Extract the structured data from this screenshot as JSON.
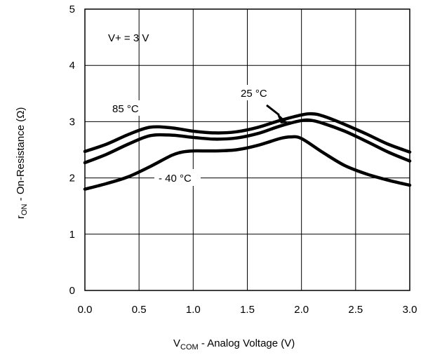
{
  "chart_data": {
    "type": "line",
    "xlabel": {
      "main": "V",
      "sub": "COM",
      "rest": " -  Analog Voltage (V)"
    },
    "ylabel": {
      "main": "r",
      "sub": "ON",
      "rest": " -    On-Resistance (Ω)"
    },
    "xlim": [
      0,
      3
    ],
    "ylim": [
      0,
      5
    ],
    "x_ticks": [
      0.0,
      0.5,
      1.0,
      1.5,
      2.0,
      2.5,
      3.0
    ],
    "x_tick_labels": [
      "0.0",
      "0.5",
      "1.0",
      "1.5",
      "2.0",
      "2.5",
      "3.0"
    ],
    "y_ticks": [
      0,
      1,
      2,
      3,
      4,
      5
    ],
    "y_tick_labels": [
      "0",
      "1",
      "2",
      "3",
      "4",
      "5"
    ],
    "grid": true,
    "series": [
      {
        "name": "85 °C",
        "x": [
          0.0,
          0.2,
          0.4,
          0.6,
          0.8,
          1.0,
          1.2,
          1.4,
          1.6,
          1.8,
          2.0,
          2.1,
          2.2,
          2.4,
          2.6,
          2.8,
          3.0
        ],
        "values": [
          2.47,
          2.6,
          2.77,
          2.9,
          2.89,
          2.83,
          2.8,
          2.82,
          2.9,
          3.02,
          3.12,
          3.14,
          3.1,
          2.95,
          2.78,
          2.6,
          2.46
        ]
      },
      {
        "name": "25 °C",
        "x": [
          0.0,
          0.2,
          0.4,
          0.6,
          0.8,
          1.0,
          1.2,
          1.4,
          1.6,
          1.8,
          2.0,
          2.1,
          2.2,
          2.4,
          2.6,
          2.8,
          3.0
        ],
        "values": [
          2.27,
          2.42,
          2.6,
          2.75,
          2.76,
          2.72,
          2.69,
          2.71,
          2.79,
          2.92,
          3.02,
          3.02,
          2.97,
          2.83,
          2.65,
          2.46,
          2.3
        ]
      },
      {
        "name": "- 40 °C",
        "x": [
          0.0,
          0.2,
          0.4,
          0.6,
          0.8,
          0.9,
          1.0,
          1.2,
          1.4,
          1.6,
          1.8,
          1.9,
          2.0,
          2.2,
          2.4,
          2.6,
          2.8,
          3.0
        ],
        "values": [
          1.8,
          1.9,
          2.02,
          2.2,
          2.4,
          2.46,
          2.48,
          2.48,
          2.5,
          2.58,
          2.7,
          2.73,
          2.7,
          2.45,
          2.22,
          2.07,
          1.96,
          1.87
        ]
      }
    ],
    "annotations": {
      "supply": "V+ = 3 V",
      "label_85": "85 °C",
      "label_25": "25 °C",
      "label_m40": "- 40 °C"
    }
  }
}
